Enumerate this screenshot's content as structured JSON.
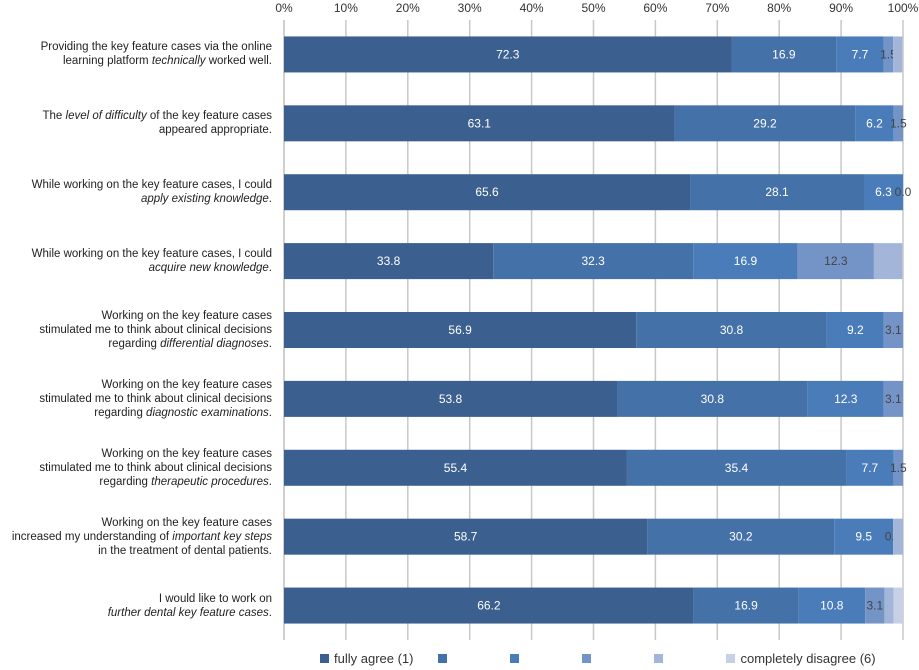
{
  "chart_data": {
    "type": "bar",
    "orientation": "horizontal-stacked-100",
    "title": "",
    "xlabel": "",
    "ylabel": "",
    "xlim": [
      0,
      100
    ],
    "x_ticks": [
      "0%",
      "10%",
      "20%",
      "30%",
      "40%",
      "50%",
      "60%",
      "70%",
      "80%",
      "90%",
      "100%"
    ],
    "x_axis_position": "top",
    "grid": true,
    "legend_position": "bottom",
    "categories": [
      [
        [
          {
            "t": "Providing the key feature cases via the online"
          }
        ],
        [
          {
            "t": "learning platform "
          },
          {
            "t": "technically",
            "i": true
          },
          {
            "t": " worked well."
          }
        ]
      ],
      [
        [
          {
            "t": "The "
          },
          {
            "t": "level of difficulty",
            "i": true
          },
          {
            "t": " of the key feature cases"
          }
        ],
        [
          {
            "t": "appeared appropriate."
          }
        ]
      ],
      [
        [
          {
            "t": "While working on the key feature cases, I could"
          }
        ],
        [
          {
            "t": "apply existing knowledge",
            "i": true
          },
          {
            "t": "."
          }
        ]
      ],
      [
        [
          {
            "t": "While working on the key feature cases, I could"
          }
        ],
        [
          {
            "t": "acquire new knowledge",
            "i": true
          },
          {
            "t": "."
          }
        ]
      ],
      [
        [
          {
            "t": "Working on the key feature cases"
          }
        ],
        [
          {
            "t": "stimulated me to think about clinical decisions"
          }
        ],
        [
          {
            "t": "regarding "
          },
          {
            "t": "differential diagnoses",
            "i": true
          },
          {
            "t": "."
          }
        ]
      ],
      [
        [
          {
            "t": "Working on the key feature cases"
          }
        ],
        [
          {
            "t": "stimulated me to think about clinical decisions"
          }
        ],
        [
          {
            "t": "regarding "
          },
          {
            "t": "diagnostic examinations",
            "i": true
          },
          {
            "t": "."
          }
        ]
      ],
      [
        [
          {
            "t": "Working on the key feature cases"
          }
        ],
        [
          {
            "t": "stimulated me to think about clinical decisions"
          }
        ],
        [
          {
            "t": "regarding "
          },
          {
            "t": "therapeutic procedures",
            "i": true
          },
          {
            "t": "."
          }
        ]
      ],
      [
        [
          {
            "t": "Working on the key feature cases"
          }
        ],
        [
          {
            "t": "increased my understanding of "
          },
          {
            "t": "important key steps",
            "i": true
          }
        ],
        [
          {
            "t": "in the treatment of dental patients."
          }
        ]
      ],
      [
        [
          {
            "t": "I would like to work on"
          }
        ],
        [
          {
            "t": "further dental key feature cases",
            "i": true
          },
          {
            "t": "."
          }
        ]
      ]
    ],
    "series": [
      {
        "name": "fully agree (1)",
        "color": "#3B5F8E",
        "values": [
          72.3,
          63.1,
          65.6,
          33.8,
          56.9,
          53.8,
          55.4,
          58.7,
          66.2
        ],
        "labels": [
          "72.3",
          "63.1",
          "65.6",
          "33.8",
          "56.9",
          "53.8",
          "55.4",
          "58.7",
          "66.2"
        ]
      },
      {
        "name": "",
        "color": "#4471A8",
        "values": [
          16.9,
          29.2,
          28.1,
          32.3,
          30.8,
          30.8,
          35.4,
          30.2,
          16.9
        ],
        "labels": [
          "16.9",
          "29.2",
          "28.1",
          "32.3",
          "30.8",
          "30.8",
          "35.4",
          "30.2",
          "16.9"
        ]
      },
      {
        "name": "",
        "color": "#4A7CB9",
        "values": [
          7.7,
          6.2,
          6.3,
          16.9,
          9.2,
          12.3,
          7.7,
          9.5,
          10.8
        ],
        "labels": [
          "7.7",
          "6.2",
          "6.3",
          "16.9",
          "9.2",
          "12.3",
          "7.7",
          "9.5",
          "10.8"
        ]
      },
      {
        "name": "",
        "color": "#7494C8",
        "values": [
          1.5,
          1.5,
          0.0,
          12.3,
          3.1,
          3.1,
          1.5,
          0.0,
          3.1
        ],
        "labels": [
          "1.5",
          "1.5",
          "0.0",
          "12.3",
          "3.1",
          "3.1",
          "1.5",
          "0.0",
          "3.1"
        ]
      },
      {
        "name": "",
        "color": "#A3B6DA",
        "values": [
          1.5,
          0,
          0,
          4.6,
          0,
          0,
          0,
          1.6,
          1.5
        ]
      },
      {
        "name": "completely disagree (6)",
        "color": "#C6D0E6",
        "values": [
          0,
          0,
          0,
          0,
          0,
          0,
          0,
          0,
          1.5
        ]
      }
    ]
  }
}
